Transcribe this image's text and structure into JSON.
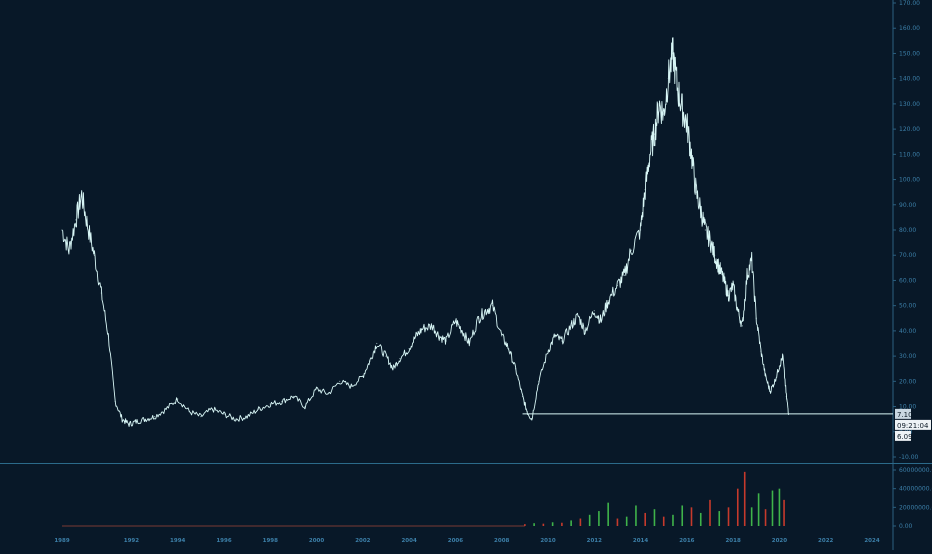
{
  "chart_data": [
    {
      "type": "line",
      "title": "",
      "xlabel": "",
      "ylabel": "",
      "xlim": [
        1989.0,
        2025.0
      ],
      "ylim": [
        -10,
        170
      ],
      "grid": false,
      "line_color": "#d8f6f6",
      "y_ticks": [
        "-10.00",
        "0.00",
        "10.00",
        "20.00",
        "30.00",
        "40.00",
        "50.00",
        "60.00",
        "70.00",
        "80.00",
        "90.00",
        "100.00",
        "110.00",
        "120.00",
        "130.00",
        "140.00",
        "150.00",
        "160.00",
        "170.00"
      ],
      "x_ticks": [
        "1989",
        "1992",
        "1994",
        "1996",
        "1998",
        "2000",
        "2002",
        "2004",
        "2006",
        "2008",
        "2010",
        "2012",
        "2014",
        "2016",
        "2018",
        "2020",
        "2022",
        "2024"
      ],
      "x_tick_values": [
        1989,
        1992,
        1994,
        1996,
        1998,
        2000,
        2002,
        2004,
        2006,
        2008,
        2010,
        2012,
        2014,
        2016,
        2018,
        2020,
        2022,
        2024
      ],
      "series": [
        {
          "x": [
            1989.0,
            1989.3,
            1989.6,
            1989.85,
            1990.1,
            1990.4,
            1990.7,
            1991.0,
            1991.3,
            1991.6,
            1991.9,
            1992.2,
            1992.6,
            1993.0,
            1993.5,
            1994.0,
            1994.5,
            1995.0,
            1995.5,
            1996.0,
            1996.5,
            1997.0,
            1997.5,
            1998.0,
            1998.5,
            1999.0,
            1999.5,
            2000.0,
            2000.5,
            2001.0,
            2001.5,
            2002.0,
            2002.3,
            2002.6,
            2003.0,
            2003.3,
            2003.6,
            2004.0,
            2004.3,
            2004.6,
            2005.0,
            2005.3,
            2005.6,
            2006.0,
            2006.3,
            2006.6,
            2007.0,
            2007.3,
            2007.6,
            2008.0,
            2008.3,
            2008.6,
            2008.9,
            2009.1,
            2009.3,
            2009.6,
            2010.0,
            2010.3,
            2010.6,
            2011.0,
            2011.3,
            2011.6,
            2012.0,
            2012.3,
            2012.6,
            2013.0,
            2013.3,
            2013.6,
            2014.0,
            2014.2,
            2014.4,
            2014.6,
            2014.8,
            2015.0,
            2015.2,
            2015.4,
            2015.6,
            2015.8,
            2016.0,
            2016.2,
            2016.4,
            2016.6,
            2016.8,
            2017.0,
            2017.2,
            2017.4,
            2017.6,
            2017.8,
            2018.0,
            2018.2,
            2018.4,
            2018.6,
            2018.8,
            2019.0,
            2019.2,
            2019.4,
            2019.6,
            2019.8,
            2020.0,
            2020.15,
            2020.3,
            2020.4
          ],
          "y": [
            80,
            72,
            84,
            94,
            82,
            70,
            55,
            38,
            12,
            5,
            3,
            4,
            5,
            6,
            9,
            13,
            8,
            6,
            9,
            7,
            5,
            6,
            9,
            11,
            12,
            14,
            10,
            17,
            15,
            20,
            18,
            22,
            28,
            35,
            30,
            25,
            29,
            33,
            38,
            41,
            42,
            38,
            36,
            44,
            40,
            35,
            45,
            48,
            50,
            38,
            33,
            25,
            14,
            8,
            5,
            20,
            32,
            38,
            36,
            42,
            46,
            40,
            48,
            44,
            52,
            58,
            62,
            72,
            80,
            96,
            110,
            118,
            130,
            126,
            140,
            150,
            136,
            128,
            122,
            110,
            95,
            88,
            80,
            76,
            70,
            65,
            60,
            54,
            58,
            48,
            42,
            62,
            68,
            45,
            32,
            22,
            16,
            20,
            26,
            30,
            14,
            7.1
          ]
        }
      ],
      "current_price": "7.10",
      "countdown": "09:21:04",
      "low_price": "6.09",
      "horizontal_line_value": 7.1
    },
    {
      "type": "bar",
      "title": "",
      "ylim": [
        0,
        60000000
      ],
      "y_ticks": [
        "0.00",
        "20000000.00",
        "40000000.00",
        "60000000.00"
      ],
      "up_color": "#3fb34a",
      "down_color": "#c63a2c",
      "x": [
        2009.0,
        2009.4,
        2009.8,
        2010.2,
        2010.6,
        2011.0,
        2011.4,
        2011.8,
        2012.2,
        2012.6,
        2013.0,
        2013.4,
        2013.8,
        2014.2,
        2014.6,
        2015.0,
        2015.4,
        2015.8,
        2016.2,
        2016.6,
        2017.0,
        2017.4,
        2017.8,
        2018.2,
        2018.5,
        2018.8,
        2019.1,
        2019.4,
        2019.7,
        2020.0,
        2020.2
      ],
      "values": [
        2000000,
        3000000,
        2500000,
        4000000,
        3500000,
        6000000,
        8000000,
        12000000,
        16000000,
        25000000,
        8000000,
        10000000,
        22000000,
        14000000,
        18000000,
        10000000,
        12000000,
        22000000,
        20000000,
        14000000,
        28000000,
        16000000,
        20000000,
        40000000,
        58000000,
        20000000,
        35000000,
        18000000,
        38000000,
        40000000,
        28000000
      ],
      "direction": [
        "down",
        "up",
        "down",
        "up",
        "down",
        "up",
        "down",
        "up",
        "up",
        "up",
        "down",
        "up",
        "up",
        "down",
        "up",
        "down",
        "up",
        "up",
        "down",
        "up",
        "down",
        "up",
        "down",
        "down",
        "down",
        "up",
        "up",
        "down",
        "up",
        "up",
        "down"
      ]
    }
  ]
}
